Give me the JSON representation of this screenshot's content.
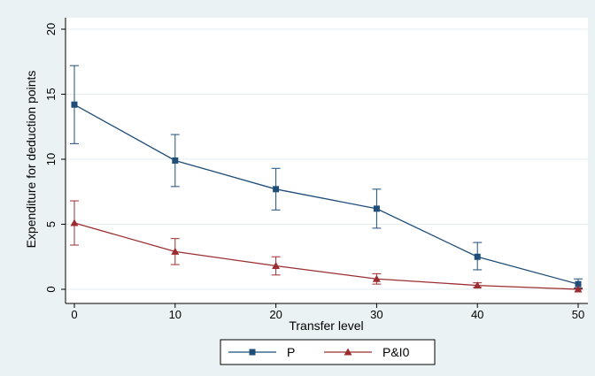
{
  "chart_data": {
    "type": "line",
    "title": "",
    "xlabel": "Transfer level",
    "ylabel": "Expenditure for deduction points",
    "x": [
      0,
      10,
      20,
      30,
      40,
      50
    ],
    "xlim": [
      0,
      50
    ],
    "ylim": [
      0,
      20
    ],
    "x_ticks": [
      "0",
      "10",
      "20",
      "30",
      "40",
      "50"
    ],
    "y_ticks": [
      "0",
      "5",
      "10",
      "15",
      "20"
    ],
    "grid": true,
    "legend_position": "bottom",
    "series": [
      {
        "name": "P",
        "color": "#1f4e79",
        "marker": "square",
        "values": [
          14.2,
          9.9,
          7.7,
          6.2,
          2.5,
          0.4
        ],
        "err_low": [
          11.2,
          7.9,
          6.1,
          4.7,
          1.5,
          0.1
        ],
        "err_high": [
          17.2,
          11.9,
          9.3,
          7.7,
          3.6,
          0.8
        ]
      },
      {
        "name": "P&I0",
        "color": "#9b2d30",
        "marker": "triangle",
        "values": [
          5.1,
          2.9,
          1.8,
          0.8,
          0.3,
          0.0
        ],
        "err_low": [
          3.4,
          1.9,
          1.1,
          0.4,
          0.15,
          0.0
        ],
        "err_high": [
          6.8,
          3.9,
          2.5,
          1.2,
          0.5,
          0.05
        ]
      }
    ]
  }
}
